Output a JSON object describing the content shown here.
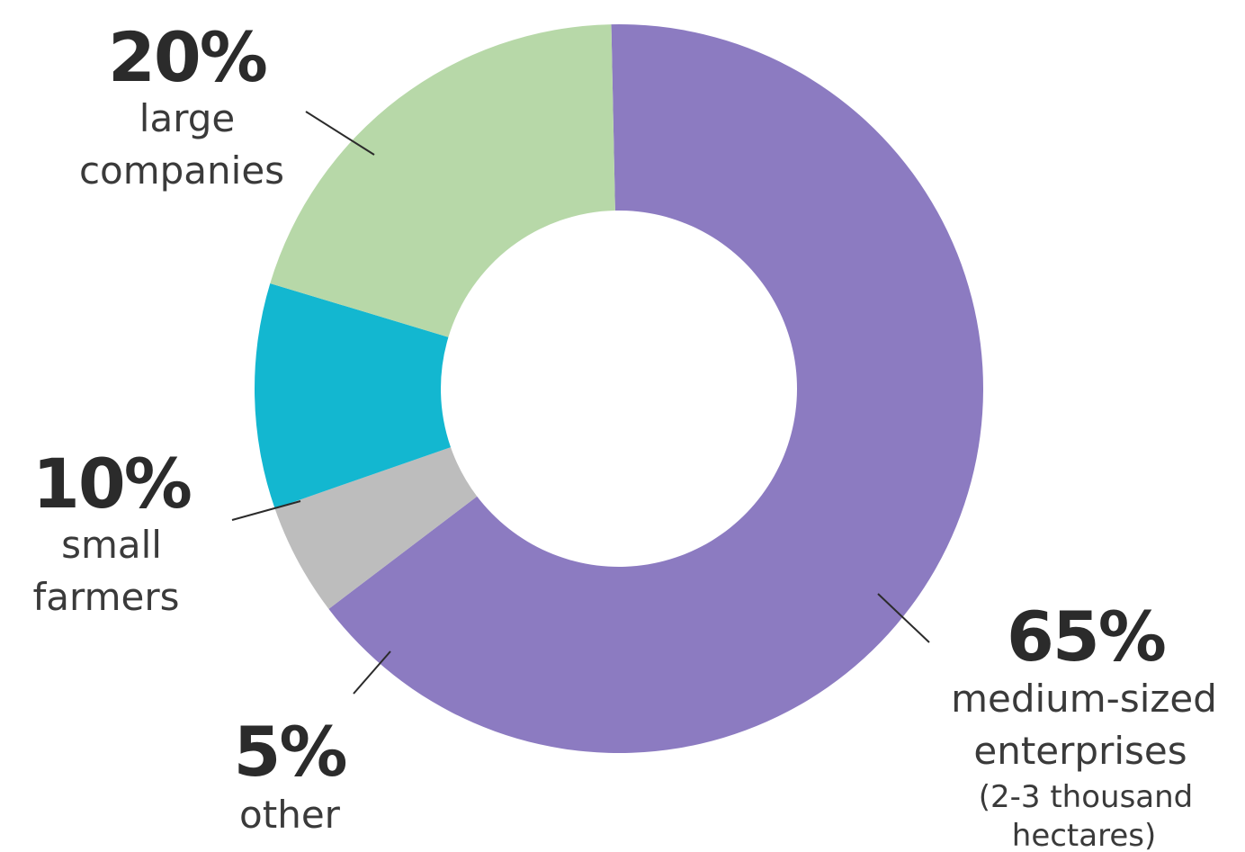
{
  "chart_data": {
    "type": "pie",
    "style": "donut",
    "slices": [
      {
        "percent_label": "65%",
        "value": 65,
        "label_lines": [
          "medium-sized",
          "enterprises"
        ],
        "note_lines": [
          "(2-3 thousand",
          "hectares)"
        ],
        "color": "#8c7bc1"
      },
      {
        "percent_label": "5%",
        "value": 5,
        "label_lines": [
          "other"
        ],
        "note_lines": [],
        "color": "#bdbdbd"
      },
      {
        "percent_label": "10%",
        "value": 10,
        "label_lines": [
          "small",
          "farmers"
        ],
        "note_lines": [],
        "color": "#13b7d0"
      },
      {
        "percent_label": "20%",
        "value": 20,
        "label_lines": [
          "large",
          "companies"
        ],
        "note_lines": [],
        "color": "#b7d8a8"
      }
    ]
  }
}
